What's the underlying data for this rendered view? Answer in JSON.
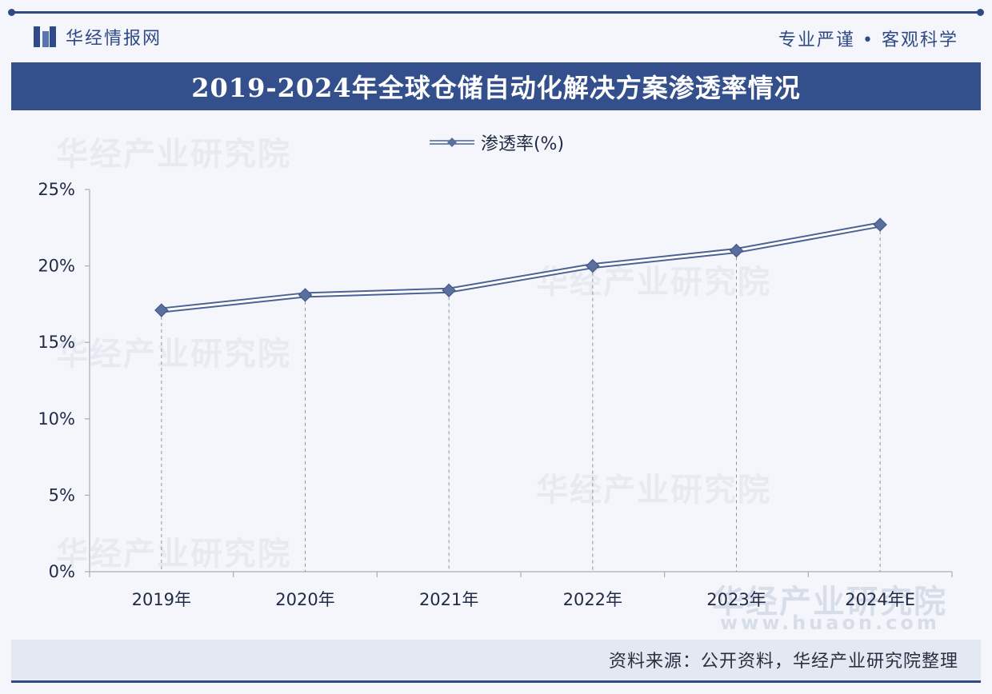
{
  "header": {
    "brand_name": "华经情报网",
    "motto": "专业严谨 • 客观科学"
  },
  "title": "2019-2024年全球仓储自动化解决方案渗透率情况",
  "legend": {
    "label": "渗透率(%)"
  },
  "footer": {
    "source": "资料来源：公开资料，华经产业研究院整理"
  },
  "watermark": {
    "text": "华经产业研究院",
    "site": "www.huaon.com"
  },
  "colors": {
    "series": "#4b6396",
    "title_bg": "#34508c",
    "marker": "#5b6f9e"
  },
  "chart_data": {
    "type": "line",
    "categories": [
      "2019年",
      "2020年",
      "2021年",
      "2022年",
      "2023年",
      "2024年E"
    ],
    "series": [
      {
        "name": "渗透率(%)",
        "values": [
          17.1,
          18.1,
          18.4,
          20.0,
          21.0,
          22.7
        ]
      }
    ],
    "ylim": [
      0,
      25
    ],
    "yticks": [
      0,
      5,
      10,
      15,
      20,
      25
    ],
    "ytick_labels": [
      "0%",
      "5%",
      "10%",
      "15%",
      "20%",
      "25%"
    ],
    "grid": false,
    "drop_lines": true,
    "legend_position": "top-center"
  }
}
